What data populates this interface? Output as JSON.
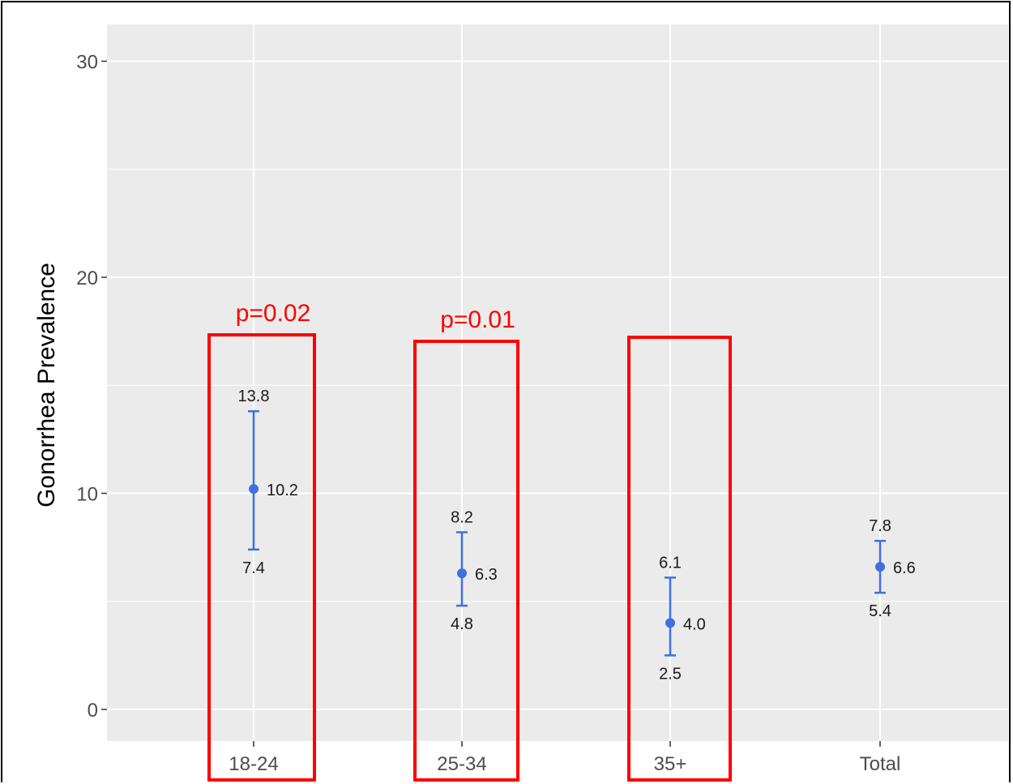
{
  "chart_data": {
    "type": "errorbar",
    "title": "",
    "xlabel": "",
    "ylabel": "Gonorrhea Prevalence",
    "ylim": [
      -1.5,
      31.5
    ],
    "yticks": [
      0,
      10,
      20,
      30
    ],
    "grid": true,
    "categories": [
      "18-24",
      "25-34",
      "35+",
      "Total"
    ],
    "series": [
      {
        "color": "#3f6fe0",
        "points": [
          {
            "category": "18-24",
            "value": 10.2,
            "lower": 7.4,
            "upper": 13.8
          },
          {
            "category": "25-34",
            "value": 6.3,
            "lower": 4.8,
            "upper": 8.2
          },
          {
            "category": "35+",
            "value": 4.0,
            "lower": 2.5,
            "upper": 6.1
          },
          {
            "category": "Total",
            "value": 6.6,
            "lower": 5.4,
            "upper": 7.8
          }
        ]
      }
    ],
    "annotations": [
      {
        "category": "18-24",
        "boxed": true,
        "text": "p=0.02"
      },
      {
        "category": "25-34",
        "boxed": true,
        "text": "p=0.01"
      },
      {
        "category": "35+",
        "boxed": true,
        "text": ""
      }
    ],
    "colors": {
      "panel": "#ebebeb",
      "grid": "#ffffff",
      "highlight": "#ff0000",
      "point": "#3f6fe0"
    }
  }
}
